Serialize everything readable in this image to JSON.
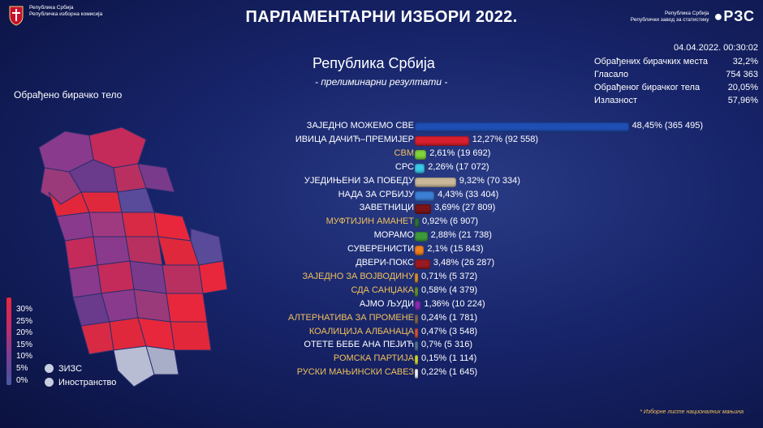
{
  "header": {
    "org_line1": "Република Србија",
    "org_line2": "Републичка изборна комисија",
    "title": "ПАРЛАМЕНТАРНИ ИЗБОРИ 2022.",
    "rzs_line1": "Република Србија",
    "rzs_line2": "Републички завод за статистику",
    "rzs_logo": "РЗС",
    "timestamp": "04.04.2022. 00:30:02"
  },
  "main": {
    "subtitle": "Република Србија",
    "subtitle2": "- прелиминарни резултати -"
  },
  "stats": [
    {
      "label": "Обрађених бирачких места",
      "value": "32,2%"
    },
    {
      "label": "Гласало",
      "value": "754 363"
    },
    {
      "label": "Обрађеног бирачког тела",
      "value": "20,05%"
    },
    {
      "label": "Излазност",
      "value": "57,96%"
    }
  ],
  "map": {
    "label": "Обрађено бирачко тело",
    "legend": [
      "30%",
      "25%",
      "20%",
      "15%",
      "10%",
      "5%",
      "0%"
    ],
    "extra": [
      "ЗИЗС",
      "Иностранство"
    ]
  },
  "chart_data": {
    "type": "bar",
    "categories": [
      "ЗАЈЕДНО МОЖЕМО СВЕ",
      "ИВИЦА ДАЧИЋ–ПРЕМИЈЕР",
      "СВМ",
      "СРС",
      "УЈЕДИЊЕНИ ЗА ПОБЕДУ",
      "НАДА ЗА СРБИЈУ",
      "ЗАВЕТНИЦИ",
      "МУФТИЈИН АМАНЕТ",
      "МОРАМО",
      "СУВЕРЕНИСТИ",
      "ДВЕРИ-ПОКС",
      "ЗАЈЕДНО ЗА ВОЈВОДИНУ",
      "СДА САНЏАКА",
      "АЈМО ЉУДИ",
      "АЛТЕРНАТИВА ЗА ПРОМЕНЕ",
      "КОАЛИЦИЈА АЛБАНАЦА",
      "ОТЕТЕ БЕБЕ АНА ПЕЈИЋ",
      "РОМСКА ПАРТИЈА",
      "РУСКИ МАЊИНСКИ САВЕЗ"
    ],
    "values": [
      48.45,
      12.27,
      2.61,
      2.26,
      9.32,
      4.43,
      3.69,
      0.92,
      2.88,
      2.1,
      3.48,
      0.71,
      0.58,
      1.36,
      0.24,
      0.47,
      0.7,
      0.15,
      0.22
    ],
    "value_labels": [
      "48,45% (365 495)",
      "12,27% (92 558)",
      "2,61% (19 692)",
      "2,26% (17 072)",
      "9,32% (70 334)",
      "4,43% (33 404)",
      "3,69% (27 809)",
      "0,92% (6 907)",
      "2,88% (21 738)",
      "2,1% (15 843)",
      "3,48% (26 287)",
      "0,71% (5 372)",
      "0,58% (4 379)",
      "1,36% (10 224)",
      "0,24% (1 781)",
      "0,47% (3 548)",
      "0,7% (5 316)",
      "0,15% (1 114)",
      "0,22% (1 645)"
    ],
    "minority": [
      false,
      false,
      true,
      false,
      false,
      false,
      false,
      true,
      false,
      false,
      false,
      true,
      true,
      false,
      true,
      true,
      false,
      true,
      true
    ],
    "colors": [
      "#1f4fb4",
      "#d91f2e",
      "#7fd23a",
      "#39c8e6",
      "#c9b99a",
      "#3b7fd6",
      "#7a1418",
      "#2f7a2a",
      "#3f9a3c",
      "#f07f1e",
      "#9a1a22",
      "#e89a2a",
      "#6a9a2a",
      "#8a2ab4",
      "#8a6a4a",
      "#e0553a",
      "#5a7a9a",
      "#d8e030",
      "#ffffff"
    ],
    "xlim": [
      0,
      50
    ]
  },
  "footnote": "* Изборне листе националних мањина"
}
